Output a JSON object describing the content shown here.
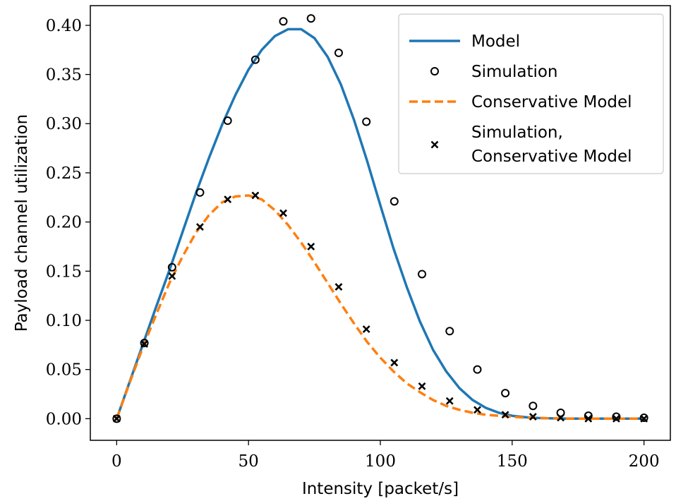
{
  "chart_data": {
    "type": "line",
    "xlabel": "Intensity [packet/s]",
    "ylabel": "Payload channel utilization",
    "xlim": [
      -10,
      210
    ],
    "ylim": [
      -0.022,
      0.42
    ],
    "xticks": [
      0,
      50,
      100,
      150,
      200
    ],
    "yticks": [
      0.0,
      0.05,
      0.1,
      0.15,
      0.2,
      0.25,
      0.3,
      0.35,
      0.4
    ],
    "xtick_labels": [
      "0",
      "50",
      "100",
      "150",
      "200"
    ],
    "ytick_labels": [
      "0.00",
      "0.05",
      "0.10",
      "0.15",
      "0.20",
      "0.25",
      "0.30",
      "0.35",
      "0.40"
    ],
    "grid": false,
    "legend_position": "top-right",
    "series": [
      {
        "name": "Model",
        "kind": "line",
        "style": "solid",
        "color": "#1f77b4",
        "x": [
          0,
          5,
          10,
          15,
          20,
          25,
          30,
          35,
          40,
          45,
          50,
          55,
          60,
          65,
          70,
          75,
          80,
          85,
          90,
          95,
          100,
          105,
          110,
          115,
          120,
          125,
          130,
          135,
          140,
          145,
          150,
          155,
          160,
          165,
          170,
          175,
          180,
          185,
          190,
          195,
          200
        ],
        "y": [
          0.0,
          0.038,
          0.076,
          0.114,
          0.151,
          0.19,
          0.229,
          0.265,
          0.299,
          0.329,
          0.355,
          0.375,
          0.389,
          0.396,
          0.396,
          0.387,
          0.368,
          0.34,
          0.304,
          0.262,
          0.217,
          0.173,
          0.134,
          0.099,
          0.07,
          0.048,
          0.031,
          0.019,
          0.011,
          0.006,
          0.003,
          0.0015,
          0.0007,
          0.0003,
          0.0001,
          0.0,
          0.0,
          0.0,
          0.0,
          0.0,
          0.0
        ]
      },
      {
        "name": "Simulation",
        "kind": "scatter",
        "marker": "circle",
        "color": "#000000",
        "x": [
          0,
          10.5,
          21,
          31.6,
          42.1,
          52.6,
          63.2,
          73.7,
          84.2,
          94.7,
          105.3,
          115.8,
          126.3,
          136.8,
          147.4,
          157.9,
          168.4,
          178.9,
          189.5,
          200
        ],
        "y": [
          0.0,
          0.077,
          0.154,
          0.23,
          0.303,
          0.365,
          0.404,
          0.407,
          0.372,
          0.302,
          0.221,
          0.147,
          0.089,
          0.05,
          0.026,
          0.013,
          0.006,
          0.003,
          0.002,
          0.001
        ]
      },
      {
        "name": "Conservative Model",
        "kind": "line",
        "style": "dashed",
        "color": "#ff7f0e",
        "x": [
          0,
          5,
          10,
          15,
          20,
          25,
          30,
          35,
          40,
          45,
          50,
          55,
          60,
          65,
          70,
          75,
          80,
          85,
          90,
          95,
          100,
          105,
          110,
          115,
          120,
          125,
          130,
          135,
          140,
          145,
          150,
          155,
          160,
          165,
          170,
          175,
          180,
          185,
          190,
          195,
          200
        ],
        "y": [
          0.0,
          0.037,
          0.073,
          0.106,
          0.138,
          0.165,
          0.189,
          0.207,
          0.22,
          0.226,
          0.227,
          0.223,
          0.212,
          0.197,
          0.179,
          0.159,
          0.138,
          0.117,
          0.097,
          0.078,
          0.062,
          0.048,
          0.036,
          0.027,
          0.019,
          0.013,
          0.009,
          0.006,
          0.004,
          0.003,
          0.002,
          0.001,
          0.0007,
          0.0004,
          0.0002,
          0.0001,
          0.0,
          0.0,
          0.0,
          0.0,
          0.0
        ]
      },
      {
        "name": "Simulation, Conservative Model",
        "legend_lines": [
          "Simulation,",
          "Conservative Model"
        ],
        "kind": "scatter",
        "marker": "x",
        "color": "#000000",
        "x": [
          0,
          10.5,
          21,
          31.6,
          42.1,
          52.6,
          63.2,
          73.7,
          84.2,
          94.7,
          105.3,
          115.8,
          126.3,
          136.8,
          147.4,
          157.9,
          168.4,
          178.9,
          189.5,
          200
        ],
        "y": [
          0.0,
          0.076,
          0.145,
          0.195,
          0.223,
          0.227,
          0.209,
          0.175,
          0.134,
          0.091,
          0.057,
          0.033,
          0.018,
          0.009,
          0.004,
          0.002,
          0.001,
          0.0,
          0.0,
          0.0
        ]
      }
    ]
  }
}
